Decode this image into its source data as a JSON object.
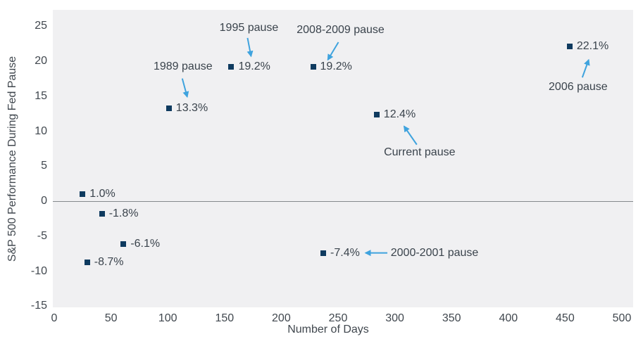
{
  "chart_data": {
    "type": "scatter",
    "title": "",
    "xlabel": "Number of Days",
    "ylabel": "S&P 500 Performance During Fed Pause",
    "xlim": [
      0,
      500
    ],
    "ylim": [
      -15,
      25
    ],
    "x_ticks": [
      0,
      50,
      100,
      150,
      200,
      250,
      300,
      350,
      400,
      450,
      500
    ],
    "y_ticks": [
      25,
      20,
      15,
      10,
      5,
      0,
      -5,
      -10,
      -15
    ],
    "grid": "off",
    "zero_line": true,
    "legend": "none",
    "marker_color": "#0e3a5f",
    "arrow_color": "#3fa3de",
    "plot_bg": "#f0f0f2",
    "zero_line_color": "#85898d",
    "text_color": "#40474e",
    "points": [
      {
        "x": 25,
        "y": 1.0,
        "label": "1.0%"
      },
      {
        "x": 42,
        "y": -1.8,
        "label": "-1.8%"
      },
      {
        "x": 61,
        "y": -6.1,
        "label": "-6.1%"
      },
      {
        "x": 29,
        "y": -8.7,
        "label": "-8.7%"
      },
      {
        "x": 101,
        "y": 13.3,
        "label": "13.3%",
        "annotation": "1989 pause"
      },
      {
        "x": 156,
        "y": 19.2,
        "label": "19.2%",
        "annotation": "1995 pause"
      },
      {
        "x": 228,
        "y": 19.2,
        "label": "19.2%",
        "annotation": "2008-2009 pause"
      },
      {
        "x": 237,
        "y": -7.4,
        "label": "-7.4%",
        "annotation": "2000-2001 pause"
      },
      {
        "x": 284,
        "y": 12.4,
        "label": "12.4%",
        "annotation": "Current pause"
      },
      {
        "x": 454,
        "y": 22.1,
        "label": "22.1%",
        "annotation": "2006 pause"
      }
    ]
  }
}
